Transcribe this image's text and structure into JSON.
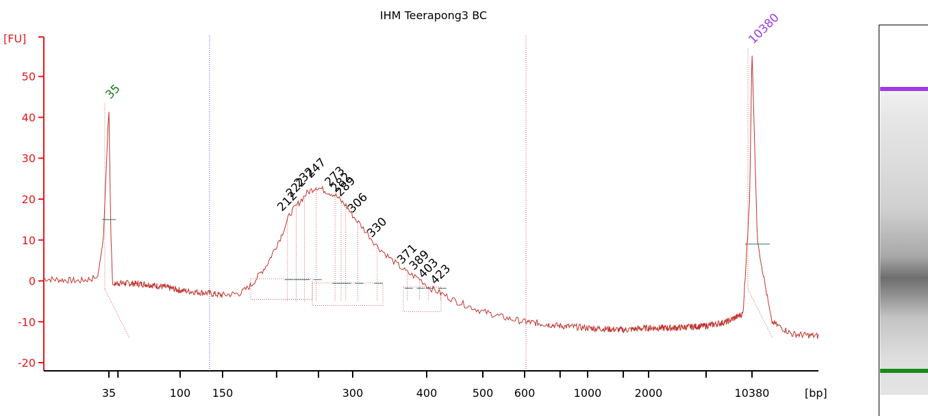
{
  "chart_data": {
    "type": "line",
    "title": "IHM Teerapong3 BC",
    "ylabel": "[FU]",
    "xlabel": "[bp]",
    "ylim": [
      -22,
      62
    ],
    "y_ticks": [
      50,
      40,
      30,
      20,
      10,
      0,
      -10,
      -20
    ],
    "x_ticks": [
      "35",
      "100",
      "150",
      "300",
      "400",
      "500",
      "600",
      "1000",
      "2000",
      "10380"
    ],
    "x_tick_scale": [
      35,
      100,
      150,
      300,
      400,
      500,
      600,
      1000,
      2000,
      10380
    ],
    "series": [
      {
        "x": [
          25,
          30,
          33,
          34,
          35,
          36,
          37,
          40,
          60,
          80,
          100,
          130,
          150,
          165,
          175,
          190,
          205,
          215,
          225,
          235,
          247,
          260,
          273,
          282,
          289,
          300,
          306,
          320,
          330,
          350,
          371,
          389,
          403,
          423,
          450,
          500,
          550,
          600,
          700,
          800,
          1000,
          1500,
          2000,
          3000,
          5000,
          7000,
          9000,
          10000,
          10380,
          10800,
          12000,
          14000,
          17000
        ],
        "y": [
          0.5,
          0.0,
          0.8,
          10.0,
          43.0,
          12.0,
          -1.0,
          -0.5,
          -0.8,
          -1.5,
          -2.3,
          -3.0,
          -3.5,
          -3.0,
          -1.0,
          4.0,
          11.0,
          16.5,
          19.0,
          21.5,
          23.0,
          22.0,
          21.0,
          19.5,
          18.5,
          16.0,
          14.5,
          11.0,
          8.5,
          5.0,
          2.0,
          0.5,
          -1.5,
          -3.0,
          -5.0,
          -7.5,
          -9.0,
          -10.0,
          -10.5,
          -11.0,
          -11.5,
          -12.0,
          -11.5,
          -11.5,
          -11.0,
          -10.0,
          -8.0,
          20.0,
          56.5,
          10.0,
          -10.0,
          -13.0,
          -13.5
        ]
      }
    ],
    "peaks": [
      {
        "label": "35",
        "x": 35,
        "y": 43,
        "color": "#1a7a1a",
        "marker_y": 15
      },
      {
        "label": "10380",
        "x": 10380,
        "y": 56.5,
        "color": "#9b3be8",
        "marker_y": 9
      }
    ],
    "fragment_labels": [
      "212",
      "222",
      "232",
      "247",
      "273",
      "282",
      "289",
      "306",
      "330",
      "371",
      "389",
      "403",
      "423"
    ],
    "fragment_values": [
      212,
      222,
      232,
      247,
      273,
      282,
      289,
      306,
      330,
      371,
      389,
      403,
      423
    ],
    "grid": false,
    "colors": {
      "trace": "#c0302a",
      "axis": "#e8161b",
      "region_line_left": "#3b3bd1",
      "region_line_right": "#d04a4a",
      "marker_green": "#1a7a1a",
      "marker_purple": "#9b3be8"
    }
  },
  "gel": {
    "bands": [
      {
        "name": "upper-marker-band",
        "color": "#9b3be8",
        "position": 0.162
      },
      {
        "name": "lower-marker-band",
        "color": "#1a8a1a",
        "position": 0.884
      }
    ]
  }
}
